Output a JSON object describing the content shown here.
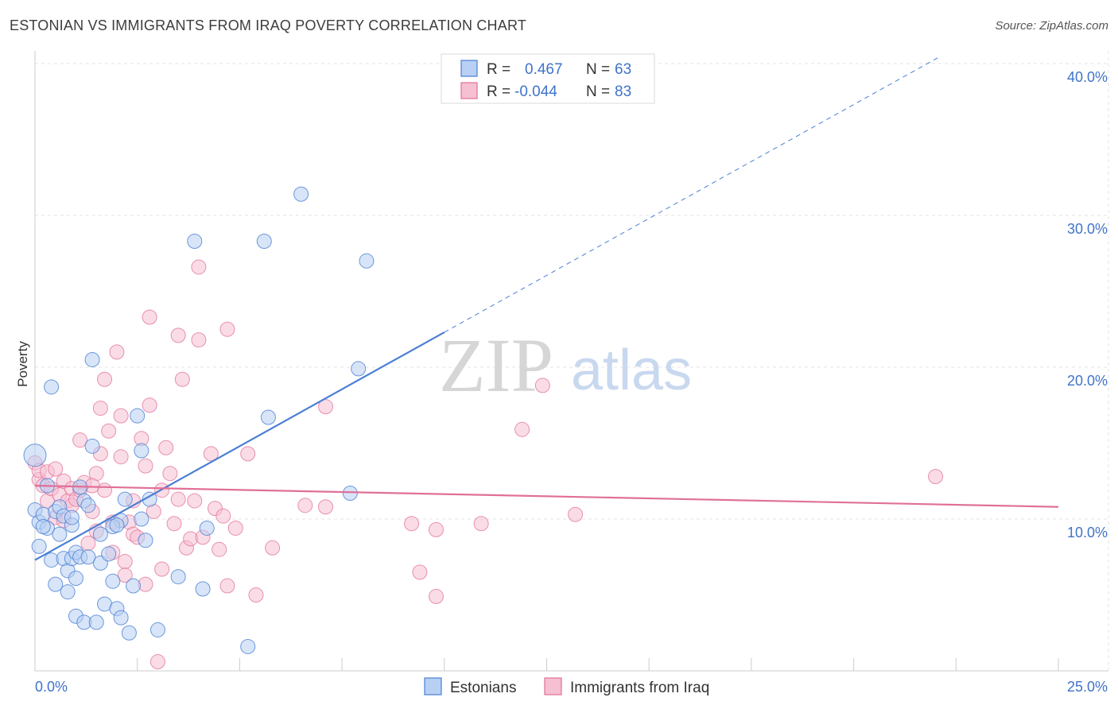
{
  "title": "ESTONIAN VS IMMIGRANTS FROM IRAQ POVERTY CORRELATION CHART",
  "source": "Source: ZipAtlas.com",
  "watermark": {
    "left": "ZIP",
    "right": "atlas"
  },
  "colors": {
    "blue": "#4a7fd4",
    "blue_fill": "#b8d0f3",
    "pink": "#e07098",
    "pink_fill": "#f6bfd2",
    "grid": "#e3e3e3",
    "axis_text": "#3f73c9"
  },
  "chart_data": {
    "type": "scatter",
    "title": "ESTONIAN VS IMMIGRANTS FROM IRAQ POVERTY CORRELATION CHART",
    "ylabel": "Poverty",
    "xlabel": "",
    "xlim": [
      0,
      25
    ],
    "ylim": [
      0,
      40
    ],
    "x_tick_labels": [
      {
        "value": 0,
        "label": "0.0%"
      },
      {
        "value": 25,
        "label": "25.0%"
      }
    ],
    "y_tick_labels": [
      {
        "value": 10,
        "label": "10.0%"
      },
      {
        "value": 20,
        "label": "20.0%"
      },
      {
        "value": 30,
        "label": "30.0%"
      },
      {
        "value": 40,
        "label": "40.0%"
      }
    ],
    "grid": true,
    "legend": {
      "placement": "top-center",
      "entries": [
        {
          "r_label": "R =",
          "r_value": "0.467",
          "n_label": "N =",
          "n_value": "63"
        },
        {
          "r_label": "R =",
          "r_value": "-0.044",
          "n_label": "N =",
          "n_value": "83"
        }
      ]
    },
    "series": [
      {
        "name": "Estonians",
        "color": "#4a7fd4",
        "trend": {
          "x0": 0,
          "y0": 7.3,
          "x1": 10,
          "y1": 22.3,
          "dashed_to_x": 25
        },
        "points": [
          [
            0.0,
            14.2
          ],
          [
            0.0,
            10.6
          ],
          [
            0.1,
            9.8
          ],
          [
            0.1,
            8.2
          ],
          [
            0.2,
            10.3
          ],
          [
            0.3,
            12.2
          ],
          [
            0.3,
            9.4
          ],
          [
            0.4,
            7.3
          ],
          [
            0.4,
            18.7
          ],
          [
            0.5,
            5.7
          ],
          [
            0.5,
            10.5
          ],
          [
            0.6,
            9.0
          ],
          [
            0.6,
            10.8
          ],
          [
            0.7,
            7.4
          ],
          [
            0.7,
            10.2
          ],
          [
            0.8,
            6.6
          ],
          [
            0.8,
            5.2
          ],
          [
            0.9,
            7.4
          ],
          [
            0.9,
            9.6
          ],
          [
            1.0,
            3.6
          ],
          [
            1.0,
            7.8
          ],
          [
            1.1,
            12.1
          ],
          [
            1.1,
            7.5
          ],
          [
            1.2,
            3.2
          ],
          [
            1.2,
            11.2
          ],
          [
            1.3,
            10.9
          ],
          [
            1.4,
            20.5
          ],
          [
            1.4,
            14.8
          ],
          [
            1.5,
            3.2
          ],
          [
            1.6,
            7.1
          ],
          [
            1.6,
            9.0
          ],
          [
            1.7,
            4.4
          ],
          [
            1.8,
            7.7
          ],
          [
            1.9,
            5.9
          ],
          [
            2.0,
            4.1
          ],
          [
            2.1,
            3.5
          ],
          [
            2.1,
            9.9
          ],
          [
            2.2,
            11.3
          ],
          [
            2.3,
            2.5
          ],
          [
            2.4,
            5.6
          ],
          [
            2.5,
            16.8
          ],
          [
            2.6,
            10.0
          ],
          [
            2.6,
            14.5
          ],
          [
            2.7,
            8.6
          ],
          [
            2.8,
            11.3
          ],
          [
            3.0,
            2.7
          ],
          [
            3.5,
            6.2
          ],
          [
            3.9,
            28.3
          ],
          [
            4.1,
            5.4
          ],
          [
            4.2,
            9.4
          ],
          [
            5.2,
            1.6
          ],
          [
            5.6,
            28.3
          ],
          [
            5.7,
            16.7
          ],
          [
            6.5,
            31.4
          ],
          [
            7.7,
            11.7
          ],
          [
            7.9,
            19.9
          ],
          [
            8.1,
            27.0
          ],
          [
            1.0,
            6.1
          ],
          [
            0.2,
            9.5
          ],
          [
            1.9,
            9.5
          ],
          [
            0.9,
            10.1
          ],
          [
            2.0,
            9.6
          ],
          [
            1.3,
            7.5
          ]
        ]
      },
      {
        "name": "Immigrants from Iraq",
        "color": "#e07098",
        "trend": {
          "x0": 0,
          "y0": 12.2,
          "x1": 25,
          "y1": 10.8
        },
        "points": [
          [
            0.0,
            13.7
          ],
          [
            0.1,
            12.6
          ],
          [
            0.1,
            13.2
          ],
          [
            0.2,
            12.2
          ],
          [
            0.3,
            13.1
          ],
          [
            0.3,
            11.2
          ],
          [
            0.4,
            12.0
          ],
          [
            0.5,
            13.3
          ],
          [
            0.5,
            10.1
          ],
          [
            0.6,
            11.6
          ],
          [
            0.7,
            12.5
          ],
          [
            0.7,
            9.9
          ],
          [
            0.8,
            11.2
          ],
          [
            0.9,
            12.0
          ],
          [
            0.9,
            10.9
          ],
          [
            1.0,
            11.3
          ],
          [
            1.1,
            11.9
          ],
          [
            1.1,
            15.2
          ],
          [
            1.2,
            12.4
          ],
          [
            1.3,
            8.4
          ],
          [
            1.4,
            10.5
          ],
          [
            1.5,
            13.0
          ],
          [
            1.5,
            9.2
          ],
          [
            1.6,
            14.3
          ],
          [
            1.6,
            17.3
          ],
          [
            1.7,
            19.2
          ],
          [
            1.7,
            11.9
          ],
          [
            1.8,
            15.8
          ],
          [
            1.9,
            9.8
          ],
          [
            1.9,
            7.8
          ],
          [
            2.0,
            21.0
          ],
          [
            2.1,
            14.1
          ],
          [
            2.1,
            16.8
          ],
          [
            2.2,
            7.2
          ],
          [
            2.2,
            6.3
          ],
          [
            2.3,
            9.8
          ],
          [
            2.4,
            9.0
          ],
          [
            2.5,
            8.8
          ],
          [
            2.6,
            15.3
          ],
          [
            2.7,
            5.7
          ],
          [
            2.7,
            13.5
          ],
          [
            2.8,
            17.5
          ],
          [
            2.8,
            23.3
          ],
          [
            2.9,
            10.5
          ],
          [
            3.1,
            6.7
          ],
          [
            3.1,
            11.9
          ],
          [
            3.2,
            14.7
          ],
          [
            3.3,
            13.0
          ],
          [
            3.4,
            9.7
          ],
          [
            3.5,
            22.1
          ],
          [
            3.5,
            11.3
          ],
          [
            3.6,
            19.2
          ],
          [
            3.7,
            8.1
          ],
          [
            3.8,
            8.7
          ],
          [
            3.9,
            11.2
          ],
          [
            4.0,
            26.6
          ],
          [
            4.0,
            21.8
          ],
          [
            4.1,
            8.8
          ],
          [
            4.3,
            14.3
          ],
          [
            4.4,
            10.7
          ],
          [
            4.5,
            8.0
          ],
          [
            4.6,
            10.2
          ],
          [
            4.7,
            5.6
          ],
          [
            4.7,
            22.5
          ],
          [
            4.9,
            9.4
          ],
          [
            5.2,
            14.3
          ],
          [
            5.4,
            5.0
          ],
          [
            5.8,
            8.1
          ],
          [
            6.6,
            10.9
          ],
          [
            7.1,
            10.8
          ],
          [
            7.1,
            17.4
          ],
          [
            9.2,
            9.7
          ],
          [
            9.4,
            6.5
          ],
          [
            9.8,
            9.3
          ],
          [
            9.8,
            4.9
          ],
          [
            10.9,
            9.7
          ],
          [
            11.9,
            15.9
          ],
          [
            12.4,
            18.8
          ],
          [
            13.2,
            10.3
          ],
          [
            22.0,
            12.8
          ],
          [
            3.0,
            0.6
          ],
          [
            1.4,
            12.2
          ],
          [
            2.4,
            11.2
          ]
        ]
      }
    ]
  },
  "bottom_legend": [
    {
      "label": "Estonians"
    },
    {
      "label": "Immigrants from Iraq"
    }
  ]
}
